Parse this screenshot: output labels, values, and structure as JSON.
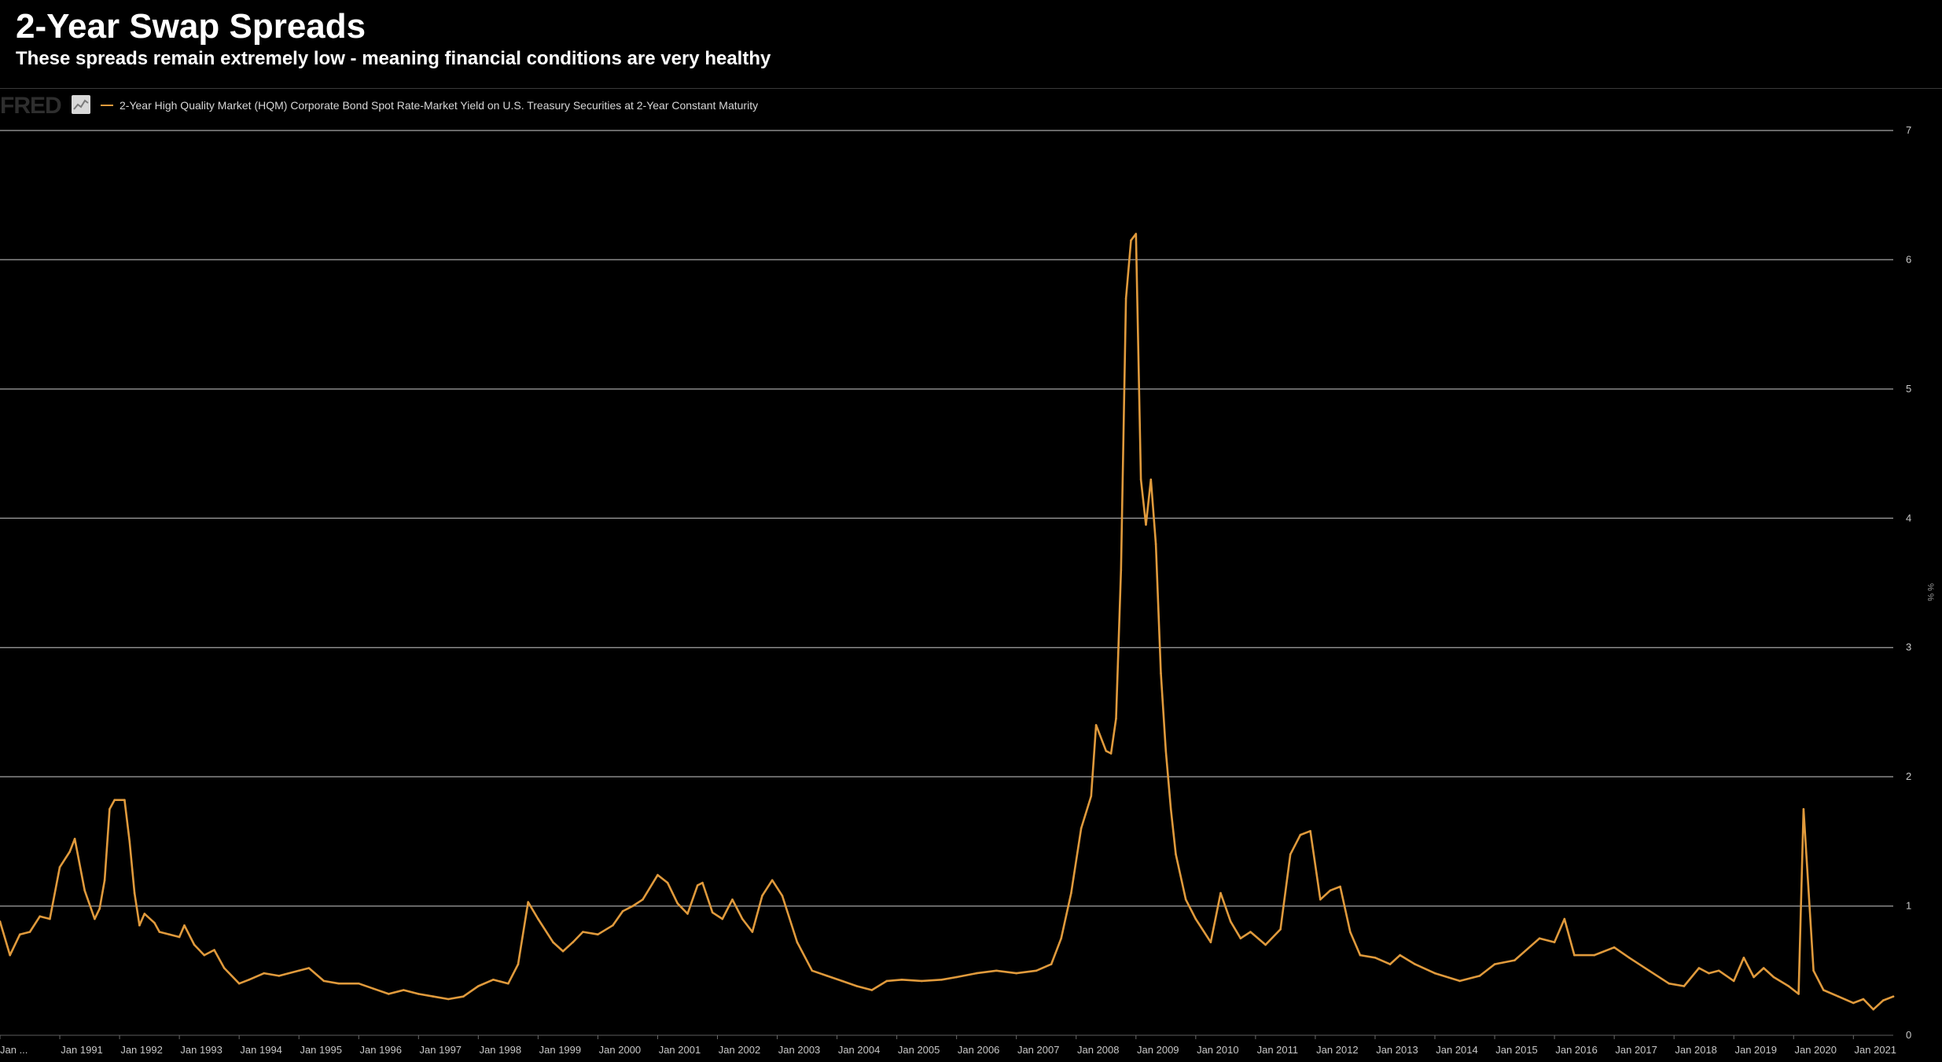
{
  "header": {
    "title": "2-Year Swap Spreads",
    "subtitle": "These spreads remain extremely low - meaning financial conditions are very healthy"
  },
  "brand": {
    "logo_text": "FRED",
    "badge_icon": "chart-icon"
  },
  "colors": {
    "background": "#000000",
    "series": "#e09a3c",
    "grid": "#9a9a9a",
    "text": "#ffffff"
  },
  "chart_data": {
    "type": "line",
    "title": "2-Year Swap Spreads",
    "subtitle": "These spreads remain extremely low - meaning financial conditions are very healthy",
    "xlabel": "",
    "ylabel": "%",
    "y_unit_label": "% %",
    "ylim": [
      0,
      7
    ],
    "xlim": [
      "1990-01",
      "2021-09"
    ],
    "y_axis_position": "right",
    "grid": true,
    "legend": "top-left",
    "y_ticks": [
      "0",
      "1",
      "2",
      "3",
      "4",
      "5",
      "6",
      "7"
    ],
    "x_ticks": [
      {
        "date": "1990-01",
        "label": "Jan ..."
      },
      {
        "date": "1991-01",
        "label": "Jan 1991"
      },
      {
        "date": "1992-01",
        "label": "Jan 1992"
      },
      {
        "date": "1993-01",
        "label": "Jan 1993"
      },
      {
        "date": "1994-01",
        "label": "Jan 1994"
      },
      {
        "date": "1995-01",
        "label": "Jan 1995"
      },
      {
        "date": "1996-01",
        "label": "Jan 1996"
      },
      {
        "date": "1997-01",
        "label": "Jan 1997"
      },
      {
        "date": "1998-01",
        "label": "Jan 1998"
      },
      {
        "date": "1999-01",
        "label": "Jan 1999"
      },
      {
        "date": "2000-01",
        "label": "Jan 2000"
      },
      {
        "date": "2001-01",
        "label": "Jan 2001"
      },
      {
        "date": "2002-01",
        "label": "Jan 2002"
      },
      {
        "date": "2003-01",
        "label": "Jan 2003"
      },
      {
        "date": "2004-01",
        "label": "Jan 2004"
      },
      {
        "date": "2005-01",
        "label": "Jan 2005"
      },
      {
        "date": "2006-01",
        "label": "Jan 2006"
      },
      {
        "date": "2007-01",
        "label": "Jan 2007"
      },
      {
        "date": "2008-01",
        "label": "Jan 2008"
      },
      {
        "date": "2009-01",
        "label": "Jan 2009"
      },
      {
        "date": "2010-01",
        "label": "Jan 2010"
      },
      {
        "date": "2011-01",
        "label": "Jan 2011"
      },
      {
        "date": "2012-01",
        "label": "Jan 2012"
      },
      {
        "date": "2013-01",
        "label": "Jan 2013"
      },
      {
        "date": "2014-01",
        "label": "Jan 2014"
      },
      {
        "date": "2015-01",
        "label": "Jan 2015"
      },
      {
        "date": "2016-01",
        "label": "Jan 2016"
      },
      {
        "date": "2017-01",
        "label": "Jan 2017"
      },
      {
        "date": "2018-01",
        "label": "Jan 2018"
      },
      {
        "date": "2019-01",
        "label": "Jan 2019"
      },
      {
        "date": "2020-01",
        "label": "Jan 2020"
      },
      {
        "date": "2021-01",
        "label": "Jan 2021"
      }
    ],
    "series": [
      {
        "name": "2-Year High Quality Market (HQM) Corporate Bond Spot Rate-Market Yield on U.S. Treasury Securities at 2-Year Constant Maturity",
        "color": "#e09a3c",
        "points": [
          [
            "1990-01",
            0.88
          ],
          [
            "1990-03",
            0.62
          ],
          [
            "1990-05",
            0.78
          ],
          [
            "1990-07",
            0.8
          ],
          [
            "1990-09",
            0.92
          ],
          [
            "1990-11",
            0.9
          ],
          [
            "1991-01",
            1.3
          ],
          [
            "1991-03",
            1.42
          ],
          [
            "1991-04",
            1.52
          ],
          [
            "1991-06",
            1.12
          ],
          [
            "1991-08",
            0.9
          ],
          [
            "1991-09",
            0.98
          ],
          [
            "1991-10",
            1.2
          ],
          [
            "1991-11",
            1.75
          ],
          [
            "1991-12",
            1.82
          ],
          [
            "1992-02",
            1.82
          ],
          [
            "1992-03",
            1.5
          ],
          [
            "1992-04",
            1.1
          ],
          [
            "1992-05",
            0.85
          ],
          [
            "1992-06",
            0.94
          ],
          [
            "1992-08",
            0.87
          ],
          [
            "1992-09",
            0.8
          ],
          [
            "1992-11",
            0.78
          ],
          [
            "1993-01",
            0.76
          ],
          [
            "1993-02",
            0.85
          ],
          [
            "1993-04",
            0.7
          ],
          [
            "1993-06",
            0.62
          ],
          [
            "1993-08",
            0.66
          ],
          [
            "1993-10",
            0.52
          ],
          [
            "1994-01",
            0.4
          ],
          [
            "1994-03",
            0.43
          ],
          [
            "1994-06",
            0.48
          ],
          [
            "1994-09",
            0.46
          ],
          [
            "1995-01",
            0.5
          ],
          [
            "1995-03",
            0.52
          ],
          [
            "1995-06",
            0.42
          ],
          [
            "1995-09",
            0.4
          ],
          [
            "1996-01",
            0.4
          ],
          [
            "1996-04",
            0.36
          ],
          [
            "1996-07",
            0.32
          ],
          [
            "1996-10",
            0.35
          ],
          [
            "1997-01",
            0.32
          ],
          [
            "1997-04",
            0.3
          ],
          [
            "1997-07",
            0.28
          ],
          [
            "1997-10",
            0.3
          ],
          [
            "1998-01",
            0.38
          ],
          [
            "1998-04",
            0.43
          ],
          [
            "1998-07",
            0.4
          ],
          [
            "1998-09",
            0.55
          ],
          [
            "1998-11",
            1.03
          ],
          [
            "1999-01",
            0.9
          ],
          [
            "1999-04",
            0.72
          ],
          [
            "1999-06",
            0.65
          ],
          [
            "1999-08",
            0.72
          ],
          [
            "1999-10",
            0.8
          ],
          [
            "2000-01",
            0.78
          ],
          [
            "2000-04",
            0.85
          ],
          [
            "2000-06",
            0.96
          ],
          [
            "2000-08",
            1.0
          ],
          [
            "2000-10",
            1.05
          ],
          [
            "2001-01",
            1.24
          ],
          [
            "2001-03",
            1.18
          ],
          [
            "2001-05",
            1.02
          ],
          [
            "2001-07",
            0.94
          ],
          [
            "2001-09",
            1.16
          ],
          [
            "2001-10",
            1.18
          ],
          [
            "2001-12",
            0.95
          ],
          [
            "2002-02",
            0.9
          ],
          [
            "2002-04",
            1.05
          ],
          [
            "2002-06",
            0.9
          ],
          [
            "2002-08",
            0.8
          ],
          [
            "2002-10",
            1.08
          ],
          [
            "2002-12",
            1.2
          ],
          [
            "2003-02",
            1.08
          ],
          [
            "2003-05",
            0.72
          ],
          [
            "2003-08",
            0.5
          ],
          [
            "2003-11",
            0.46
          ],
          [
            "2004-02",
            0.42
          ],
          [
            "2004-05",
            0.38
          ],
          [
            "2004-08",
            0.35
          ],
          [
            "2004-11",
            0.42
          ],
          [
            "2005-02",
            0.43
          ],
          [
            "2005-06",
            0.42
          ],
          [
            "2005-10",
            0.43
          ],
          [
            "2006-01",
            0.45
          ],
          [
            "2006-05",
            0.48
          ],
          [
            "2006-09",
            0.5
          ],
          [
            "2007-01",
            0.48
          ],
          [
            "2007-05",
            0.5
          ],
          [
            "2007-08",
            0.55
          ],
          [
            "2007-10",
            0.75
          ],
          [
            "2007-12",
            1.1
          ],
          [
            "2008-02",
            1.6
          ],
          [
            "2008-04",
            1.85
          ],
          [
            "2008-05",
            2.4
          ],
          [
            "2008-07",
            2.2
          ],
          [
            "2008-08",
            2.18
          ],
          [
            "2008-09",
            2.45
          ],
          [
            "2008-10",
            3.6
          ],
          [
            "2008-11",
            5.7
          ],
          [
            "2008-12",
            6.15
          ],
          [
            "2009-01",
            6.2
          ],
          [
            "2009-02",
            4.3
          ],
          [
            "2009-03",
            3.95
          ],
          [
            "2009-04",
            4.3
          ],
          [
            "2009-05",
            3.8
          ],
          [
            "2009-06",
            2.8
          ],
          [
            "2009-07",
            2.2
          ],
          [
            "2009-08",
            1.75
          ],
          [
            "2009-09",
            1.4
          ],
          [
            "2009-11",
            1.05
          ],
          [
            "2010-01",
            0.9
          ],
          [
            "2010-04",
            0.72
          ],
          [
            "2010-06",
            1.1
          ],
          [
            "2010-08",
            0.88
          ],
          [
            "2010-10",
            0.75
          ],
          [
            "2010-12",
            0.8
          ],
          [
            "2011-03",
            0.7
          ],
          [
            "2011-06",
            0.82
          ],
          [
            "2011-08",
            1.4
          ],
          [
            "2011-10",
            1.55
          ],
          [
            "2011-12",
            1.58
          ],
          [
            "2012-02",
            1.05
          ],
          [
            "2012-04",
            1.12
          ],
          [
            "2012-06",
            1.15
          ],
          [
            "2012-08",
            0.8
          ],
          [
            "2012-10",
            0.62
          ],
          [
            "2013-01",
            0.6
          ],
          [
            "2013-04",
            0.55
          ],
          [
            "2013-06",
            0.62
          ],
          [
            "2013-09",
            0.55
          ],
          [
            "2014-01",
            0.48
          ],
          [
            "2014-06",
            0.42
          ],
          [
            "2014-10",
            0.46
          ],
          [
            "2015-01",
            0.55
          ],
          [
            "2015-05",
            0.58
          ],
          [
            "2015-10",
            0.75
          ],
          [
            "2016-01",
            0.72
          ],
          [
            "2016-03",
            0.9
          ],
          [
            "2016-05",
            0.62
          ],
          [
            "2016-09",
            0.62
          ],
          [
            "2017-01",
            0.68
          ],
          [
            "2017-04",
            0.6
          ],
          [
            "2017-08",
            0.5
          ],
          [
            "2017-12",
            0.4
          ],
          [
            "2018-03",
            0.38
          ],
          [
            "2018-06",
            0.52
          ],
          [
            "2018-08",
            0.48
          ],
          [
            "2018-10",
            0.5
          ],
          [
            "2019-01",
            0.42
          ],
          [
            "2019-03",
            0.6
          ],
          [
            "2019-05",
            0.45
          ],
          [
            "2019-07",
            0.52
          ],
          [
            "2019-09",
            0.45
          ],
          [
            "2019-12",
            0.38
          ],
          [
            "2020-02",
            0.32
          ],
          [
            "2020-03",
            1.75
          ],
          [
            "2020-05",
            0.5
          ],
          [
            "2020-07",
            0.35
          ],
          [
            "2020-10",
            0.3
          ],
          [
            "2021-01",
            0.25
          ],
          [
            "2021-03",
            0.28
          ],
          [
            "2021-05",
            0.2
          ],
          [
            "2021-07",
            0.27
          ],
          [
            "2021-09",
            0.3
          ]
        ]
      }
    ]
  }
}
